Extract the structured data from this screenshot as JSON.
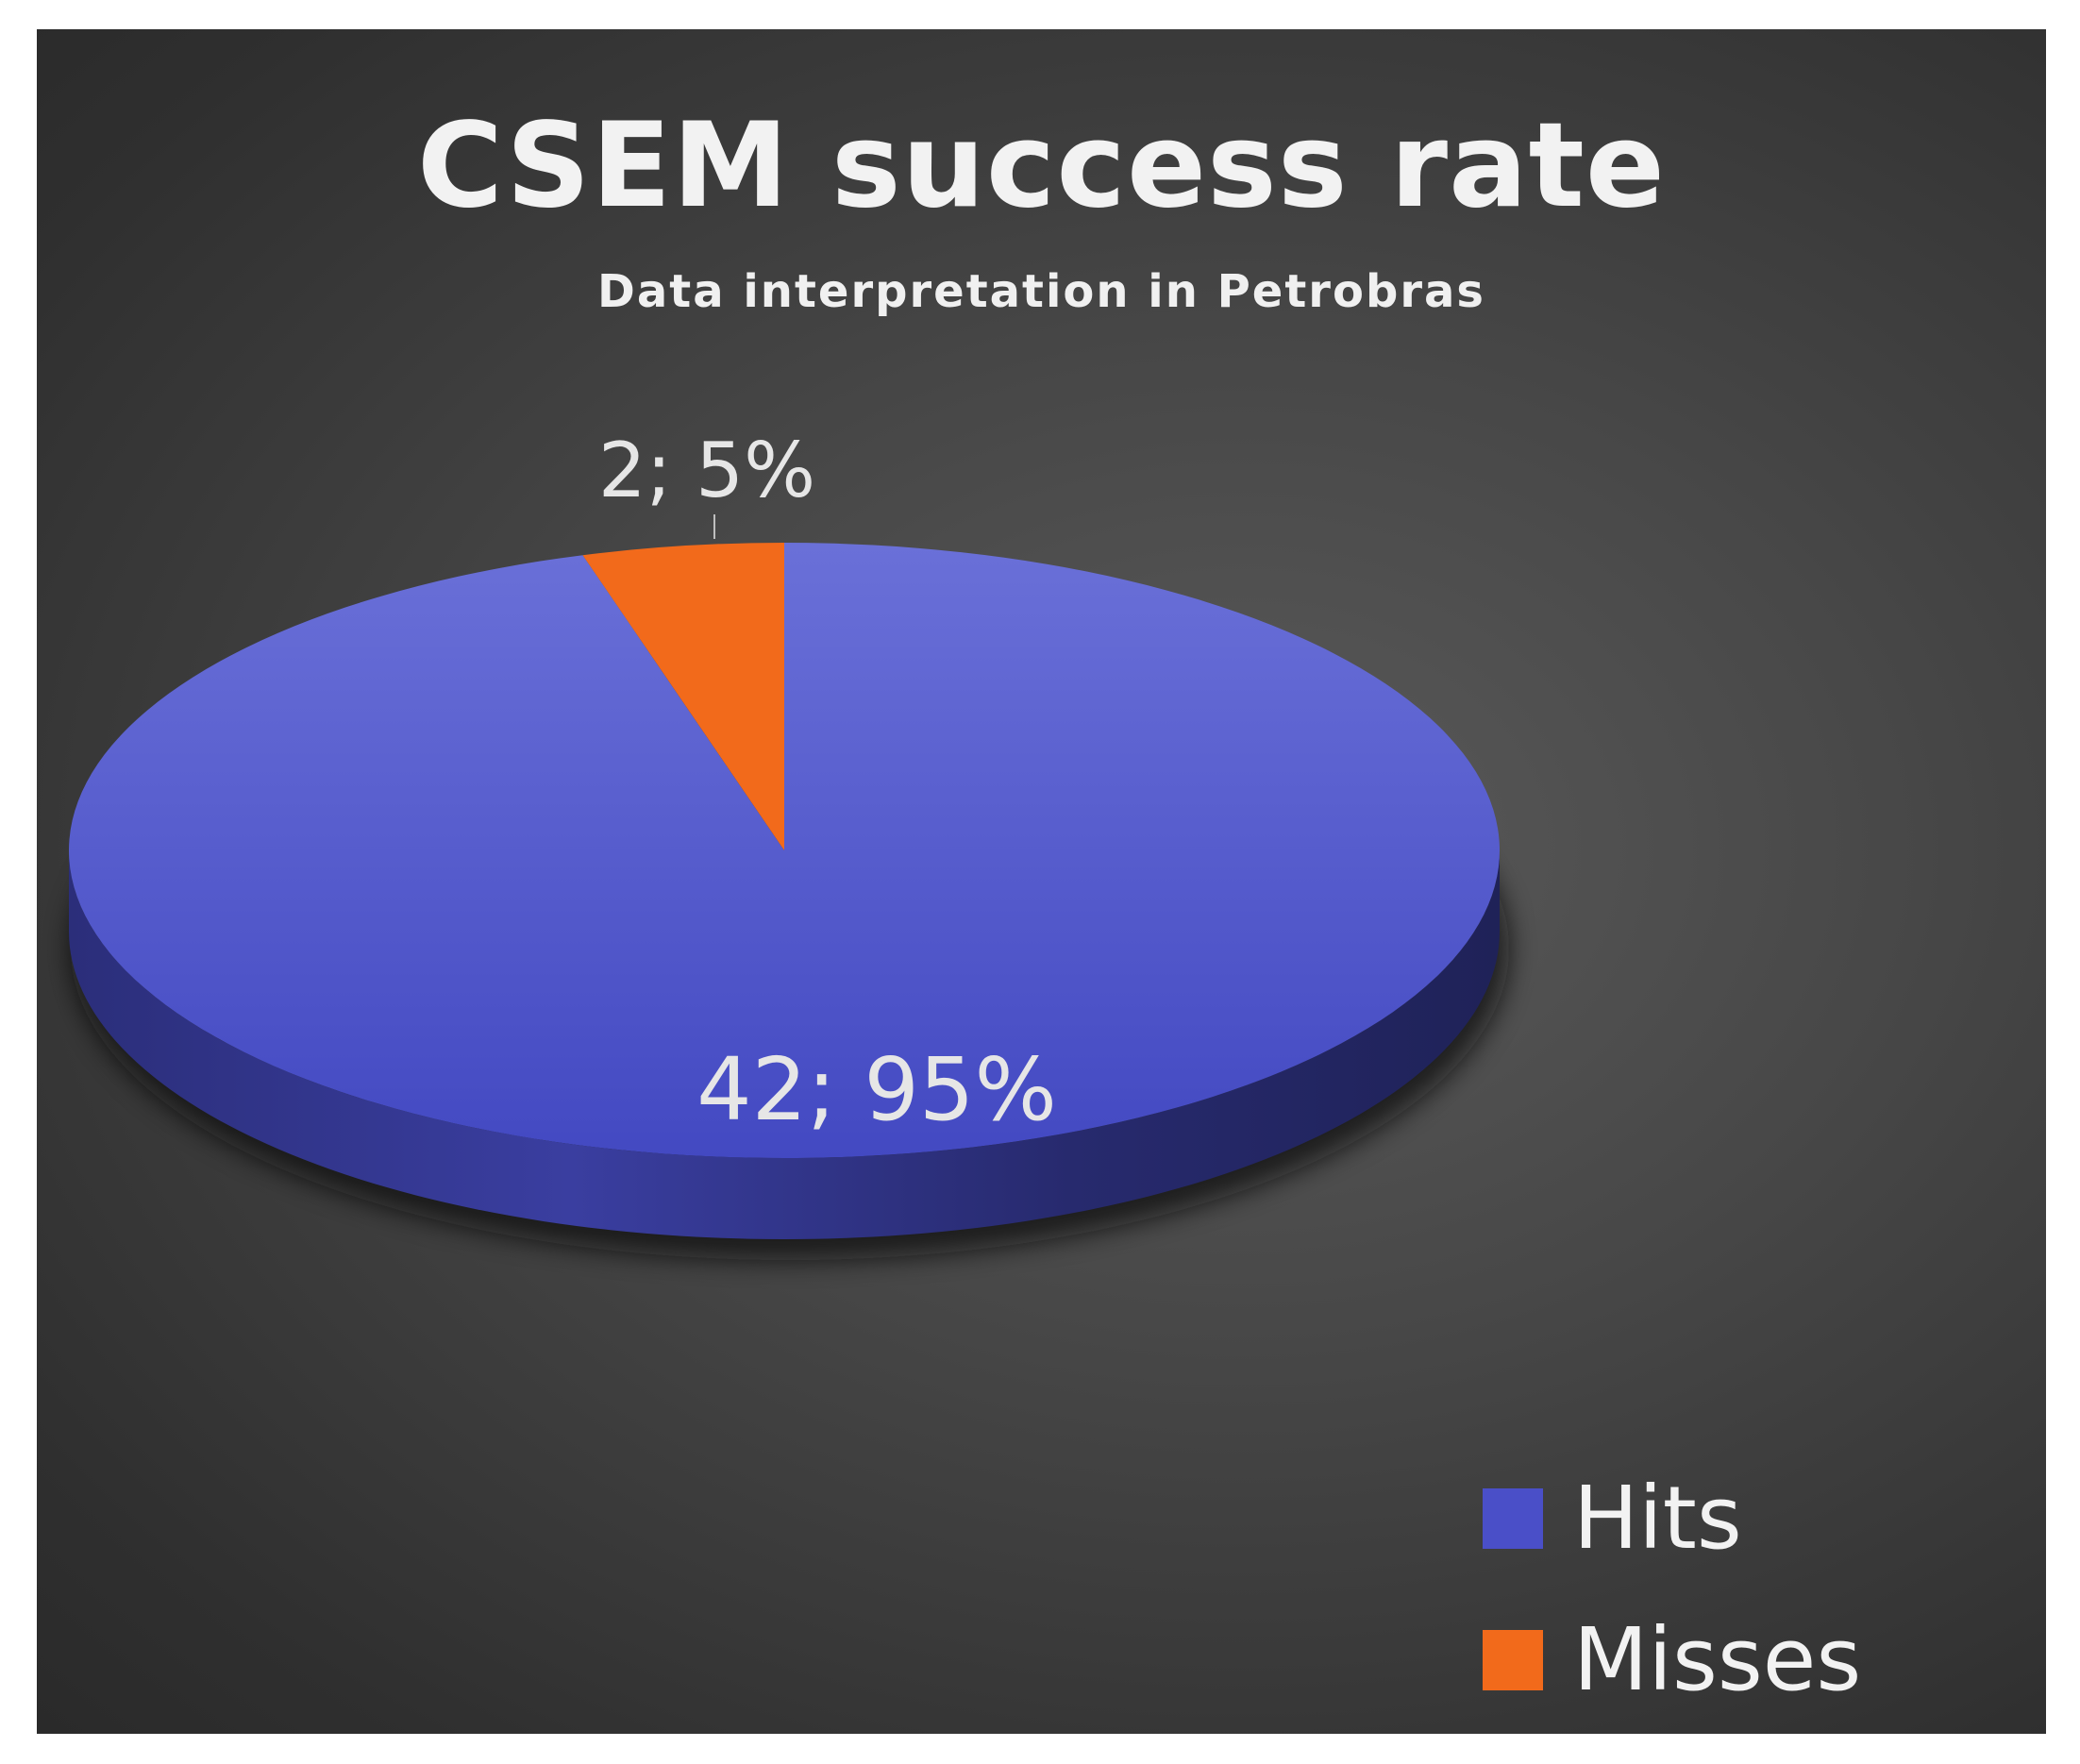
{
  "chart_data": {
    "type": "pie",
    "title": "CSEM success rate",
    "subtitle": "Data interpretation in Petrobras",
    "slices": [
      {
        "label": "Hits",
        "value": 42,
        "percent": "95%",
        "data_label": "42; 95%",
        "color": "#4a4fc8",
        "side_color": "#2e3080"
      },
      {
        "label": "Misses",
        "value": 2,
        "percent": "5%",
        "data_label": "2; 5%",
        "color": "#f26a1b",
        "side_color": "#a8460e"
      }
    ],
    "style": "3d",
    "legend_position": "bottom-right",
    "background": "#404040"
  }
}
